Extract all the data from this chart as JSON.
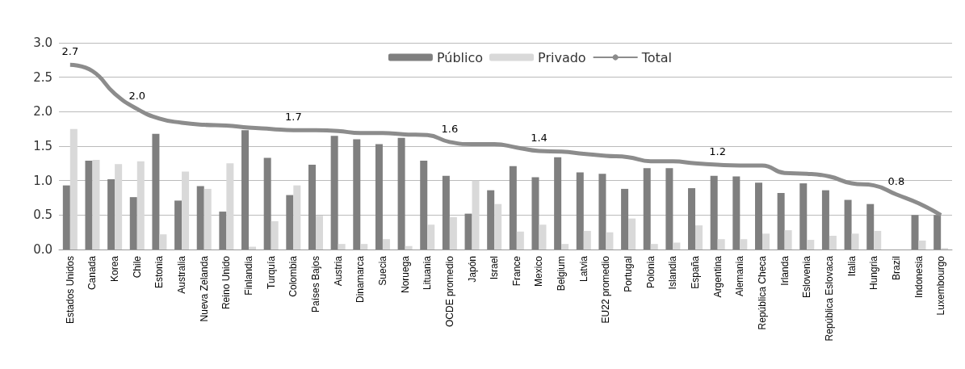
{
  "chart_data": {
    "type": "bar",
    "categories": [
      "Estados Unidos",
      "Canada",
      "Korea",
      "Chile",
      "Estonia",
      "Australia",
      "Nueva Zelanda",
      "Reino Unido",
      "Finlandia",
      "Turquía",
      "Colombia",
      "Países Bajos",
      "Austria",
      "Dinamarca",
      "Suecia",
      "Noruega",
      "Lituania",
      "OCDE promedio",
      "Japón",
      "Israel",
      "France",
      "Mexico",
      "Belgium",
      "Latvia",
      "EU22 promedio",
      "Portugal",
      "Polonia",
      "Islandia",
      "España",
      "Argentina",
      "Alemania",
      "República Checa",
      "Irlanda",
      "Eslovenia",
      "República Eslovaca",
      "Italia",
      "Hungria",
      "Brazil",
      "Indonesia",
      "Luxembourgo"
    ],
    "series": [
      {
        "name": "Público",
        "color": "#7f7f7f",
        "values": [
          0.93,
          1.29,
          1.02,
          0.76,
          1.68,
          0.71,
          0.92,
          0.55,
          1.73,
          1.33,
          0.79,
          1.23,
          1.65,
          1.6,
          1.53,
          1.62,
          1.29,
          1.07,
          0.52,
          0.86,
          1.21,
          1.05,
          1.34,
          1.12,
          1.1,
          0.88,
          1.18,
          1.18,
          0.89,
          1.07,
          1.06,
          0.97,
          0.82,
          0.96,
          0.86,
          0.72,
          0.66,
          null,
          0.5,
          0.5
        ]
      },
      {
        "name": "Privado",
        "color": "#d9d9d9",
        "values": [
          1.75,
          1.3,
          1.24,
          1.28,
          0.22,
          1.13,
          0.88,
          1.25,
          0.04,
          0.41,
          0.93,
          0.49,
          0.08,
          0.08,
          0.15,
          0.05,
          0.36,
          0.47,
          1.0,
          0.66,
          0.26,
          0.36,
          0.08,
          0.27,
          0.25,
          0.45,
          0.08,
          0.1,
          0.35,
          0.15,
          0.15,
          0.23,
          0.28,
          0.14,
          0.2,
          0.23,
          0.27,
          null,
          0.13,
          0.02
        ]
      },
      {
        "name": "Total",
        "type": "line",
        "color": "#8c8c8c",
        "values": [
          2.68,
          2.59,
          2.26,
          2.04,
          1.9,
          1.84,
          1.81,
          1.8,
          1.77,
          1.75,
          1.73,
          1.73,
          1.72,
          1.69,
          1.69,
          1.67,
          1.66,
          1.56,
          1.53,
          1.53,
          1.48,
          1.43,
          1.42,
          1.39,
          1.36,
          1.34,
          1.28,
          1.28,
          1.25,
          1.23,
          1.22,
          1.22,
          1.11,
          1.1,
          1.06,
          0.96,
          0.93,
          0.8,
          0.67,
          0.5
        ],
        "value_labels": [
          "2.7",
          null,
          null,
          "2.0",
          null,
          null,
          null,
          null,
          null,
          null,
          "1.7",
          null,
          null,
          null,
          null,
          null,
          null,
          "1.6",
          null,
          null,
          null,
          "1.4",
          null,
          null,
          null,
          null,
          null,
          null,
          null,
          "1.2",
          null,
          null,
          null,
          null,
          null,
          null,
          null,
          "0.8",
          null,
          null
        ]
      }
    ],
    "ylim": [
      0,
      3
    ],
    "yticks": [
      {
        "value": 0,
        "label": "0.0"
      },
      {
        "value": 0.5,
        "label": "0.5"
      },
      {
        "value": 1,
        "label": "1.0"
      },
      {
        "value": 1.5,
        "label": "1.5"
      },
      {
        "value": 2,
        "label": "2.0"
      },
      {
        "value": 2.5,
        "label": "2.5"
      },
      {
        "value": 3,
        "label": "3.0"
      }
    ],
    "grid": "y",
    "legend": "top right",
    "marker": "none"
  }
}
